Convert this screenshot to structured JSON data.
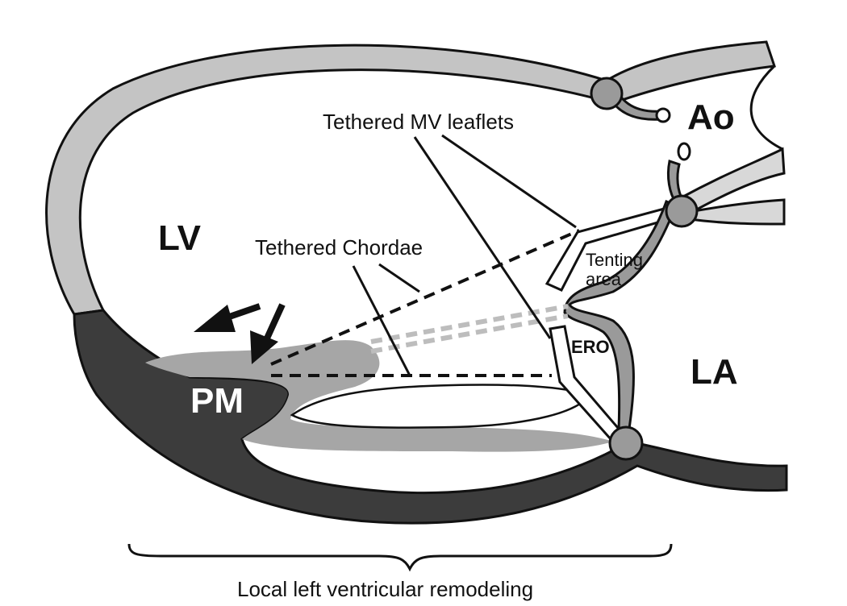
{
  "labels": {
    "ao": "Ao",
    "lv": "LV",
    "la": "LA",
    "pm": "PM",
    "ero": "ERO",
    "tenting_line1": "Tenting",
    "tenting_line2": "area",
    "tethered_mv_leaflets": "Tethered MV leaflets",
    "tethered_chordae": "Tethered Chordae",
    "caption": "Local left ventricular remodeling"
  },
  "colors": {
    "wall_light": "#c4c4c4",
    "wall_dark": "#3c3c3c",
    "muscle_gray": "#a6a6a6",
    "annulus": "#9a9a9a",
    "leaflet_fill": "#ffffff",
    "stroke": "#111111",
    "chordae_light": "#bdbdbd"
  }
}
